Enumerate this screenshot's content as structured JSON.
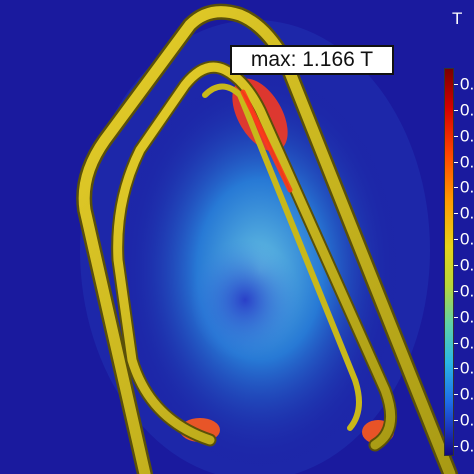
{
  "annotation": {
    "text": "max: 1.166 T"
  },
  "colorbar": {
    "unit": "T",
    "tick_labels": [
      "0.",
      "0.",
      "0.",
      "0.",
      "0.",
      "0.",
      "0.",
      "0.",
      "0.",
      "0.",
      "0.",
      "0.",
      "0.",
      "0.",
      "0."
    ]
  },
  "colors": {
    "background": "#1a1a9e",
    "coil": "#d8c21e",
    "field_peak": "#ff3a1a"
  }
}
